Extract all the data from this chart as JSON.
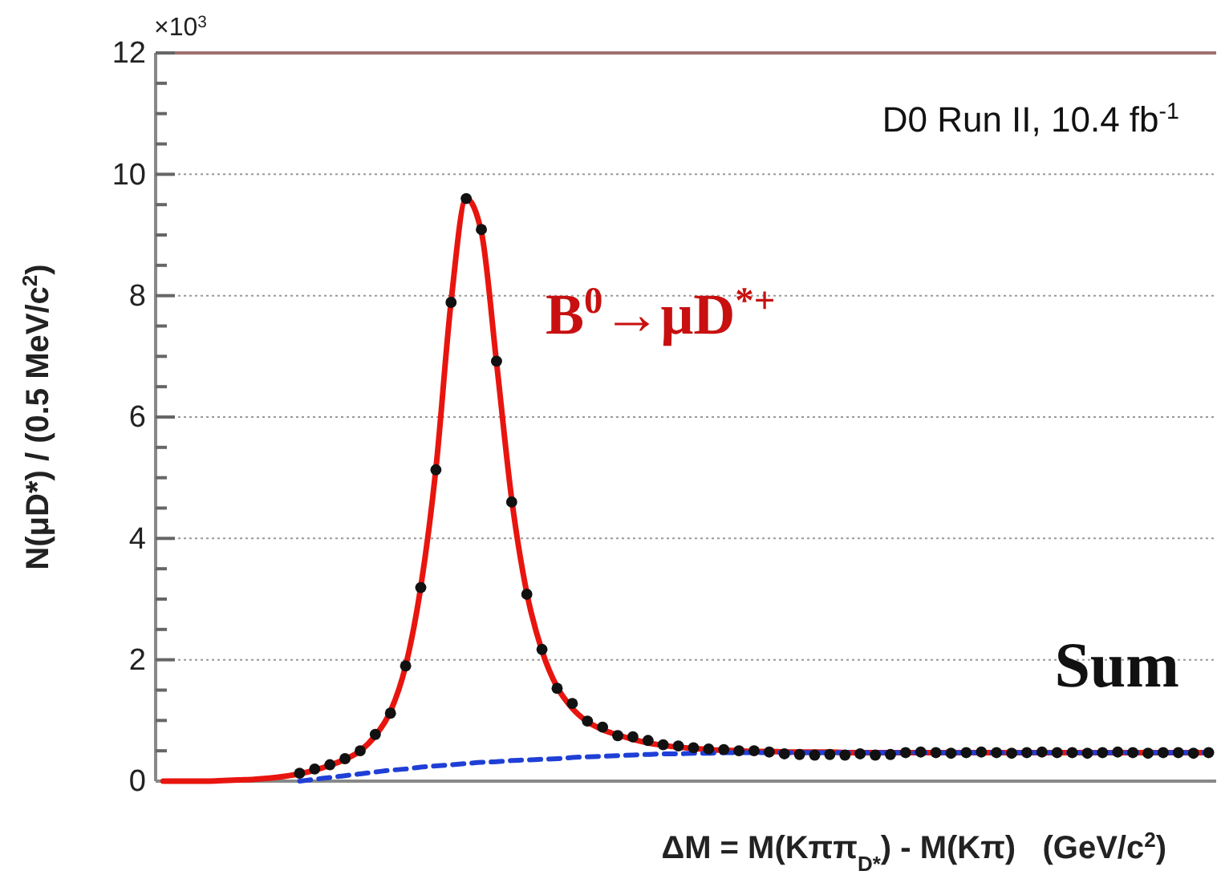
{
  "chart_data": {
    "type": "scatter",
    "xlabel": "ΔM = M(Kππ$_{D*}$) - M(Kπ)   (GeV/c$^{2}$)",
    "ylabel": "N(μD*) / (0.5 MeV/c$^{2}$)",
    "categories": [
      null,
      null,
      null,
      null,
      null,
      null,
      null,
      null,
      null,
      null,
      null,
      null,
      null,
      null,
      null,
      null,
      null,
      null,
      null,
      null,
      null,
      null,
      null,
      null,
      null,
      null,
      null,
      null,
      null,
      null,
      null,
      null,
      null,
      null,
      null,
      null,
      null,
      null,
      null,
      null,
      null,
      null,
      null,
      null,
      null,
      null,
      null,
      null,
      null,
      null,
      null,
      null,
      null,
      null,
      null,
      null,
      null,
      null,
      null,
      null,
      null,
      null,
      null,
      null,
      null,
      null,
      null,
      null,
      null,
      null
    ],
    "series": [
      {
        "type": "line",
        "color": "#e8150f",
        "line_style": "solid",
        "marker": "none",
        "values": [
          0,
          0,
          0,
          0,
          0.01,
          0.02,
          0.03,
          0.05,
          0.08,
          0.12,
          0.18,
          0.26,
          0.36,
          0.5,
          0.75,
          1.15,
          1.9,
          3.2,
          5.15,
          7.9,
          9.6,
          9.05,
          6.9,
          4.65,
          3.1,
          2.15,
          1.55,
          1.2,
          0.98,
          0.85,
          0.76,
          0.69,
          0.63,
          0.59,
          0.56,
          0.54,
          0.52,
          0.51,
          0.5,
          0.49,
          0.49,
          0.48,
          0.48,
          0.48,
          0.48,
          0.47,
          0.47,
          0.47,
          0.47,
          0.47,
          0.47,
          0.47,
          0.47,
          0.47,
          0.47,
          0.47,
          0.47,
          0.47,
          0.47,
          0.47,
          0.47,
          0.47,
          0.47,
          0.47,
          0.47,
          0.47,
          0.47,
          0.47,
          0.47,
          0.47
        ]
      },
      {
        "type": "line",
        "color": "#1f3fd6",
        "line_style": "dashed",
        "marker": "none",
        "values": [
          null,
          null,
          null,
          null,
          null,
          null,
          null,
          null,
          null,
          0,
          0.03,
          0.06,
          0.09,
          0.12,
          0.15,
          0.18,
          0.2,
          0.23,
          0.25,
          0.27,
          0.29,
          0.31,
          0.32,
          0.34,
          0.35,
          0.36,
          0.37,
          0.39,
          0.4,
          0.41,
          0.42,
          0.43,
          0.44,
          0.45,
          0.45,
          0.46,
          0.46,
          0.47,
          0.47,
          0.47,
          0.47,
          0.47,
          0.47,
          0.47,
          0.47,
          0.47,
          0.47,
          0.47,
          0.47,
          0.47,
          0.47,
          0.47,
          0.47,
          0.47,
          0.47,
          0.47,
          0.47,
          0.47,
          0.47,
          0.47,
          0.47,
          0.47,
          0.47,
          0.47,
          0.47,
          0.47,
          0.47,
          0.47,
          0.47,
          0.47
        ]
      },
      {
        "color": "#111111",
        "marker": "circle",
        "values": [
          null,
          null,
          null,
          null,
          null,
          null,
          null,
          null,
          null,
          0.13,
          0.2,
          0.27,
          0.37,
          0.5,
          0.77,
          1.12,
          1.9,
          3.19,
          5.13,
          7.89,
          9.6,
          9.09,
          6.92,
          4.6,
          3.08,
          2.17,
          1.53,
          1.28,
          0.99,
          0.89,
          0.75,
          0.73,
          0.67,
          0.6,
          0.58,
          0.55,
          0.53,
          0.52,
          0.5,
          0.5,
          0.48,
          0.45,
          0.44,
          0.43,
          0.44,
          0.43,
          0.45,
          0.43,
          0.44,
          0.47,
          0.48,
          0.47,
          0.46,
          0.47,
          0.48,
          0.47,
          0.46,
          0.47,
          0.48,
          0.47,
          0.47,
          0.46,
          0.47,
          0.48,
          0.47,
          0.46,
          0.47,
          0.47,
          0.46,
          0.47
        ]
      }
    ],
    "ylim": [
      0,
      12
    ],
    "yticks": [
      0,
      {
        "value": 0.5,
        "label": null
      },
      {
        "value": 1,
        "label": null
      },
      {
        "value": 1.5,
        "label": null
      },
      2,
      {
        "value": 2.5,
        "label": null
      },
      {
        "value": 3,
        "label": null
      },
      {
        "value": 3.5,
        "label": null
      },
      4,
      {
        "value": 4.5,
        "label": null
      },
      {
        "value": 5,
        "label": null
      },
      {
        "value": 5.5,
        "label": null
      },
      6,
      {
        "value": 6.5,
        "label": null
      },
      {
        "value": 7,
        "label": null
      },
      {
        "value": 7.5,
        "label": null
      },
      8,
      {
        "value": 8.5,
        "label": null
      },
      {
        "value": 9,
        "label": null
      },
      {
        "value": 9.5,
        "label": null
      },
      10,
      {
        "value": 10.5,
        "label": null
      },
      {
        "value": 11,
        "label": null
      },
      {
        "value": 11.5,
        "label": null
      },
      12
    ],
    "grid": "y",
    "annotations": [
      "×10$^{3}$",
      "D0 Run II, 10.4 fb$^{-1}$",
      "B$^{0}$→μD$^{*+}$",
      "Sum"
    ]
  }
}
